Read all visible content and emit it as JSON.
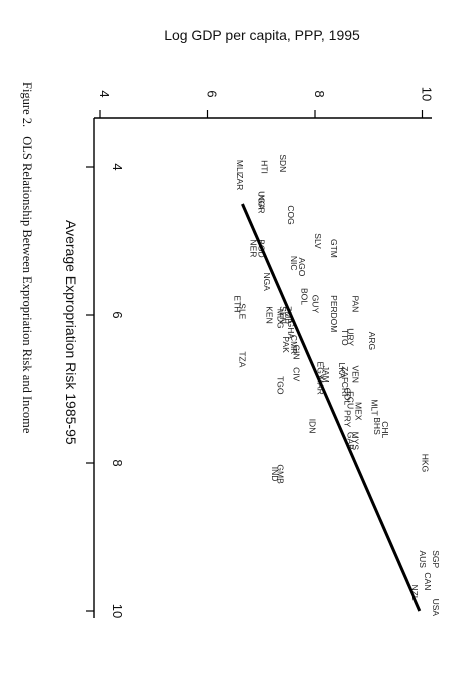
{
  "figure": {
    "caption_prefix": "Figure 2.",
    "caption_text": "OLS Relationship Between Expropriation Risk and Income"
  },
  "chart_data": {
    "type": "scatter",
    "xlabel": "Average Expropriation Risk 1985-95",
    "ylabel": "Log GDP per capita, PPP, 1995",
    "xlim": [
      3.4,
      10.1
    ],
    "ylim": [
      3.9,
      10.3
    ],
    "xticks": [
      4,
      6,
      8,
      10
    ],
    "yticks": [
      4,
      6,
      8,
      10
    ],
    "fit_line": {
      "x": [
        4.5,
        10.0
      ],
      "y": [
        6.65,
        9.95
      ]
    },
    "points": [
      {
        "label": "ZAR",
        "x": 4.2,
        "y": 6.55
      },
      {
        "label": "HTI",
        "x": 4.0,
        "y": 7.0
      },
      {
        "label": "SDN",
        "x": 3.95,
        "y": 7.35
      },
      {
        "label": "MLI",
        "x": 4.0,
        "y": 6.55
      },
      {
        "label": "UGA",
        "x": 4.45,
        "y": 6.95
      },
      {
        "label": "NGR",
        "x": 4.5,
        "y": 6.95
      },
      {
        "label": "COG",
        "x": 4.65,
        "y": 7.5
      },
      {
        "label": "SLV",
        "x": 5.0,
        "y": 8.0
      },
      {
        "label": "GTM",
        "x": 5.1,
        "y": 8.3
      },
      {
        "label": "BGD",
        "x": 5.1,
        "y": 6.95
      },
      {
        "label": "NER",
        "x": 5.1,
        "y": 6.8
      },
      {
        "label": "AGO",
        "x": 5.35,
        "y": 7.7
      },
      {
        "label": "NIC",
        "x": 5.3,
        "y": 7.55
      },
      {
        "label": "NGA",
        "x": 5.55,
        "y": 7.05
      },
      {
        "label": "BOL",
        "x": 5.75,
        "y": 7.75
      },
      {
        "label": "GUY",
        "x": 5.85,
        "y": 7.95
      },
      {
        "label": "PER",
        "x": 5.85,
        "y": 8.3
      },
      {
        "label": "PAN",
        "x": 5.85,
        "y": 8.7
      },
      {
        "label": "SLE",
        "x": 5.95,
        "y": 6.6
      },
      {
        "label": "ETH",
        "x": 5.85,
        "y": 6.5
      },
      {
        "label": "KEN",
        "x": 6.0,
        "y": 7.1
      },
      {
        "label": "SEN",
        "x": 6.0,
        "y": 7.35
      },
      {
        "label": "ZMB",
        "x": 6.0,
        "y": 7.45
      },
      {
        "label": "MDG",
        "x": 6.05,
        "y": 7.3
      },
      {
        "label": "GHA",
        "x": 6.2,
        "y": 7.5
      },
      {
        "label": "DOM",
        "x": 6.1,
        "y": 8.3
      },
      {
        "label": "TTO",
        "x": 6.3,
        "y": 8.5
      },
      {
        "label": "URY",
        "x": 6.3,
        "y": 8.6
      },
      {
        "label": "ARG",
        "x": 6.35,
        "y": 9.0
      },
      {
        "label": "CMR",
        "x": 6.4,
        "y": 7.55
      },
      {
        "label": "PAK",
        "x": 6.4,
        "y": 7.4
      },
      {
        "label": "GIN",
        "x": 6.5,
        "y": 7.6
      },
      {
        "label": "EGY",
        "x": 6.75,
        "y": 8.05
      },
      {
        "label": "CIV",
        "x": 6.8,
        "y": 7.6
      },
      {
        "label": "JAM",
        "x": 6.8,
        "y": 8.15
      },
      {
        "label": "TZA",
        "x": 6.6,
        "y": 6.6
      },
      {
        "label": "TGO",
        "x": 6.95,
        "y": 7.3
      },
      {
        "label": "ZAF",
        "x": 6.8,
        "y": 8.5
      },
      {
        "label": "MAR",
        "x": 6.95,
        "y": 8.05
      },
      {
        "label": "LKA",
        "x": 6.75,
        "y": 8.45
      },
      {
        "label": "VEN",
        "x": 6.8,
        "y": 8.7
      },
      {
        "label": "CRI",
        "x": 7.0,
        "y": 8.5
      },
      {
        "label": "COL",
        "x": 7.1,
        "y": 8.55
      },
      {
        "label": "MEX",
        "x": 7.3,
        "y": 8.75
      },
      {
        "label": "ECU",
        "x": 7.15,
        "y": 8.6
      },
      {
        "label": "PRY",
        "x": 7.4,
        "y": 8.55
      },
      {
        "label": "MLT",
        "x": 7.25,
        "y": 9.05
      },
      {
        "label": "BHS",
        "x": 7.5,
        "y": 9.1
      },
      {
        "label": "CHL",
        "x": 7.55,
        "y": 9.25
      },
      {
        "label": "IDN",
        "x": 7.5,
        "y": 7.9
      },
      {
        "label": "GAB",
        "x": 7.7,
        "y": 8.6
      },
      {
        "label": "MYS",
        "x": 7.7,
        "y": 8.7
      },
      {
        "label": "IND",
        "x": 8.15,
        "y": 7.2
      },
      {
        "label": "GMB",
        "x": 8.15,
        "y": 7.3
      },
      {
        "label": "HKG",
        "x": 8.0,
        "y": 10.0
      },
      {
        "label": "SGP",
        "x": 9.3,
        "y": 10.2
      },
      {
        "label": "AUS",
        "x": 9.3,
        "y": 9.95
      },
      {
        "label": "CAN",
        "x": 9.6,
        "y": 10.05
      },
      {
        "label": "NZL",
        "x": 9.75,
        "y": 9.8
      },
      {
        "label": "USA",
        "x": 9.95,
        "y": 10.2
      }
    ]
  }
}
